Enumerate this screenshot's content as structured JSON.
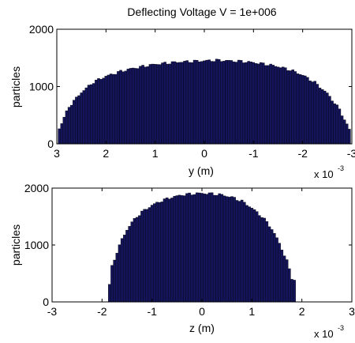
{
  "figure_title": "Deflecting Voltage V = 1e+006",
  "colors": {
    "bar_fill": "#14145a",
    "bar_edge": "#000000",
    "axis": "#000000",
    "background": "#ffffff"
  },
  "chart_data": [
    {
      "type": "bar",
      "title": "Deflecting Voltage V = 1e+006",
      "xlabel": "y (m)",
      "ylabel": "particles",
      "x_exponent_base": "x 10",
      "x_exponent_power": "-3",
      "x_reversed": true,
      "xlim": [
        -3,
        3
      ],
      "ylim": [
        0,
        2000
      ],
      "xticks": [
        "3",
        "2",
        "1",
        "0",
        "-1",
        "-2",
        "-3"
      ],
      "yticks": [
        "0",
        "1000",
        "2000"
      ],
      "grid": false,
      "bin_width": 0.05,
      "x": [
        2.95,
        2.75,
        2.5,
        2.25,
        2.0,
        1.75,
        1.5,
        1.25,
        1.0,
        0.75,
        0.5,
        0.25,
        0.0,
        -0.25,
        -0.5,
        -0.75,
        -1.0,
        -1.25,
        -1.5,
        -1.75,
        -2.0,
        -2.25,
        -2.5,
        -2.75,
        -2.95
      ],
      "values": [
        270,
        650,
        900,
        1080,
        1180,
        1250,
        1310,
        1350,
        1390,
        1410,
        1430,
        1440,
        1450,
        1460,
        1450,
        1440,
        1420,
        1390,
        1350,
        1290,
        1200,
        1070,
        880,
        600,
        250
      ]
    },
    {
      "type": "bar",
      "xlabel": "z (m)",
      "ylabel": "particles",
      "x_exponent_base": "x 10",
      "x_exponent_power": "-3",
      "x_reversed": false,
      "xlim": [
        -3,
        3
      ],
      "ylim": [
        0,
        2000
      ],
      "xticks": [
        "-3",
        "-2",
        "-1",
        "0",
        "1",
        "2",
        "3"
      ],
      "yticks": [
        "0",
        "1000",
        "2000"
      ],
      "grid": false,
      "bin_width": 0.05,
      "x": [
        -1.85,
        -1.8,
        -1.7,
        -1.6,
        -1.5,
        -1.4,
        -1.3,
        -1.2,
        -1.0,
        -0.8,
        -0.6,
        -0.4,
        -0.2,
        0.0,
        0.2,
        0.4,
        0.6,
        0.8,
        1.0,
        1.2,
        1.3,
        1.4,
        1.5,
        1.6,
        1.7,
        1.8,
        1.87
      ],
      "values": [
        300,
        620,
        880,
        1100,
        1270,
        1400,
        1500,
        1580,
        1700,
        1780,
        1840,
        1880,
        1900,
        1910,
        1900,
        1880,
        1840,
        1770,
        1650,
        1500,
        1400,
        1280,
        1120,
        930,
        720,
        420,
        380
      ]
    }
  ]
}
